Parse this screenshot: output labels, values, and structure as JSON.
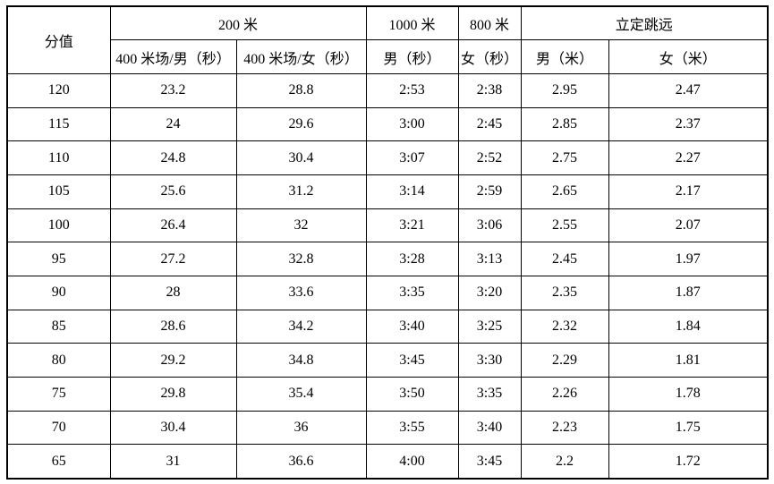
{
  "table": {
    "border_color": "#000000",
    "background_color": "#ffffff",
    "header": {
      "score": "分值",
      "run200_group": "200 米",
      "run1000_group": "1000 米",
      "run800_group": "800 米",
      "jump_group": "立定跳远",
      "run200_male": "400 米场/男（秒）",
      "run200_female": "400 米场/女（秒）",
      "run1000_male": "男（秒）",
      "run800_female": "女（秒）",
      "jump_male": "男（米）",
      "jump_female": "女（米）"
    },
    "rows": [
      [
        "120",
        "23.2",
        "28.8",
        "2:53",
        "2:38",
        "2.95",
        "2.47"
      ],
      [
        "115",
        "24",
        "29.6",
        "3:00",
        "2:45",
        "2.85",
        "2.37"
      ],
      [
        "110",
        "24.8",
        "30.4",
        "3:07",
        "2:52",
        "2.75",
        "2.27"
      ],
      [
        "105",
        "25.6",
        "31.2",
        "3:14",
        "2:59",
        "2.65",
        "2.17"
      ],
      [
        "100",
        "26.4",
        "32",
        "3:21",
        "3:06",
        "2.55",
        "2.07"
      ],
      [
        "95",
        "27.2",
        "32.8",
        "3:28",
        "3:13",
        "2.45",
        "1.97"
      ],
      [
        "90",
        "28",
        "33.6",
        "3:35",
        "3:20",
        "2.35",
        "1.87"
      ],
      [
        "85",
        "28.6",
        "34.2",
        "3:40",
        "3:25",
        "2.32",
        "1.84"
      ],
      [
        "80",
        "29.2",
        "34.8",
        "3:45",
        "3:30",
        "2.29",
        "1.81"
      ],
      [
        "75",
        "29.8",
        "35.4",
        "3:50",
        "3:35",
        "2.26",
        "1.78"
      ],
      [
        "70",
        "30.4",
        "36",
        "3:55",
        "3:40",
        "2.23",
        "1.75"
      ],
      [
        "65",
        "31",
        "36.6",
        "4:00",
        "3:45",
        "2.2",
        "1.72"
      ]
    ]
  }
}
